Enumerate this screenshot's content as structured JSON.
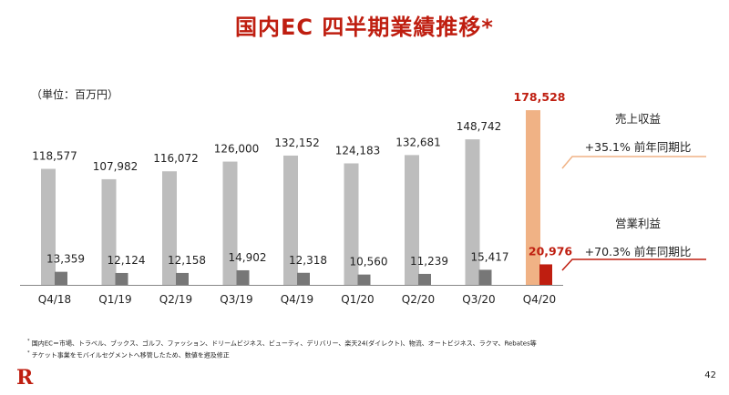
{
  "title": "国内EC 四半期業績推移*",
  "unit_label": "（単位：百万円）",
  "chart_data": {
    "type": "bar",
    "title": "国内EC 四半期業績推移*",
    "categories": [
      "Q4/18",
      "Q1/19",
      "Q2/19",
      "Q3/19",
      "Q4/19",
      "Q1/20",
      "Q2/20",
      "Q3/20",
      "Q4/20"
    ],
    "series": [
      {
        "name": "売上収益",
        "values": [
          118577,
          107982,
          116072,
          126000,
          132152,
          124183,
          132681,
          148742,
          178528
        ],
        "labels": [
          "118,577",
          "107,982",
          "116,072",
          "126,000",
          "132,152",
          "124,183",
          "132,681",
          "148,742",
          "178,528"
        ],
        "color": "#bdbdbd",
        "highlight_color": "#f0b285"
      },
      {
        "name": "営業利益",
        "values": [
          13359,
          12124,
          12158,
          14902,
          12318,
          10560,
          11239,
          15417,
          20976
        ],
        "labels": [
          "13,359",
          "12,124",
          "12,158",
          "14,902",
          "12,318",
          "10,560",
          "11,239",
          "15,417",
          "20,976"
        ],
        "color": "#777777",
        "highlight_color": "#bf1e10"
      }
    ],
    "ylim": [
      0,
      200000
    ],
    "xlabel": "",
    "ylabel": "",
    "grid": false,
    "highlight_index": 8
  },
  "colors": {
    "accent": "#bf1e10",
    "revenue_bar": "#bdbdbd",
    "revenue_highlight": "#f0b285",
    "profit_bar": "#777777",
    "profit_highlight": "#bf1e10"
  },
  "side_annotations": {
    "revenue": {
      "title": "売上収益",
      "growth": "+35.1% 前年同期比"
    },
    "profit": {
      "title": "営業利益",
      "growth": "+70.3% 前年同期比"
    }
  },
  "notes": [
    {
      "mark": "*",
      "text": "国内EC＝市場、トラベル、ブックス、ゴルフ、ファッション、ドリームビジネス、ビューティ、デリバリー、楽天24(ダイレクト)、物流、オートビジネス、ラクマ、Rebates等"
    },
    {
      "mark": "*",
      "text": "チケット事業をモバイルセグメントへ移管したため、数値を遡及修正"
    }
  ],
  "logo_text": "R",
  "page_number": "42"
}
